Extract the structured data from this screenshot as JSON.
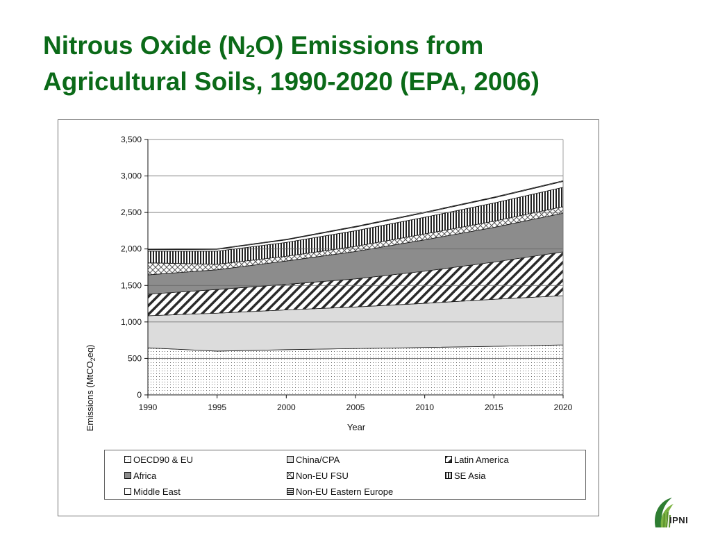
{
  "slide": {
    "title_part1": "Nitrous Oxide (N",
    "title_sub": "2",
    "title_part2": "O) Emissions from",
    "title_line2": "Agricultural Soils, 1990-2020 (EPA, 2006)"
  },
  "logo_text": "IPNI",
  "colors": {
    "title": "#0b6a18",
    "oecd_fill": "#ffffff",
    "china_fill": "#dcdcdc",
    "africa_fill": "#8c8c8c",
    "middle_east_fill": "#ffffff"
  },
  "chart_data": {
    "type": "area",
    "stacked": true,
    "x": [
      1990,
      1995,
      2000,
      2005,
      2010,
      2015,
      2020
    ],
    "xlabel": "Year",
    "ylabel": "Emissions (MtCO2eq)",
    "ylabel_pre": "Emissions (MtCO",
    "ylabel_sub": "2",
    "ylabel_post": "eq)",
    "ylim": [
      0,
      3500
    ],
    "yticks": [
      0,
      500,
      1000,
      1500,
      2000,
      2500,
      3000,
      3500
    ],
    "ytick_labels": [
      "0",
      "500",
      "1,000",
      "1,500",
      "2,000",
      "2,500",
      "3,000",
      "3,500"
    ],
    "xtick_labels": [
      "1990",
      "1995",
      "2000",
      "2005",
      "2010",
      "2015",
      "2020"
    ],
    "grid": "horizontal",
    "legend_position": "bottom",
    "series": [
      {
        "name": "OECD90 & EU",
        "pattern": "dots",
        "values": [
          645,
          600,
          620,
          635,
          650,
          665,
          685
        ]
      },
      {
        "name": "China/CPA",
        "pattern": "light-gray",
        "values": [
          440,
          520,
          545,
          570,
          605,
          645,
          675
        ]
      },
      {
        "name": "Latin America",
        "pattern": "diagonal",
        "values": [
          295,
          325,
          350,
          385,
          440,
          510,
          600
        ]
      },
      {
        "name": "Africa",
        "pattern": "dark-gray",
        "values": [
          265,
          270,
          320,
          375,
          430,
          475,
          530
        ]
      },
      {
        "name": "Non-EU FSU",
        "pattern": "crosshatch",
        "values": [
          165,
          75,
          65,
          70,
          80,
          85,
          90
        ]
      },
      {
        "name": "SE Asia",
        "pattern": "vertical",
        "values": [
          160,
          180,
          190,
          215,
          230,
          250,
          265
        ]
      },
      {
        "name": "Middle East",
        "pattern": "white",
        "values": [
          20,
          25,
          35,
          50,
          60,
          70,
          80
        ]
      },
      {
        "name": "Non-EU Eastern Europe",
        "pattern": "horizontal",
        "values": [
          10,
          8,
          8,
          10,
          10,
          10,
          10
        ]
      }
    ]
  }
}
